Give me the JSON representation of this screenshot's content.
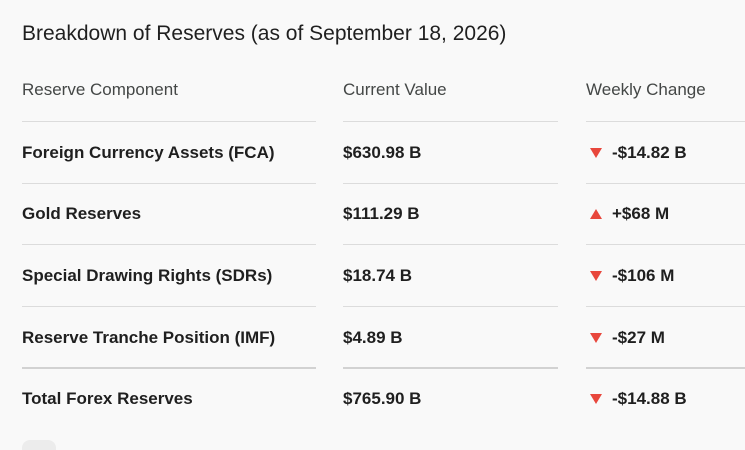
{
  "title": "Breakdown of Reserves (as of September 18, 2026)",
  "headers": {
    "component": "Reserve Component",
    "value": "Current Value",
    "change": "Weekly Change"
  },
  "colors": {
    "change_arrow": "#e8473c"
  },
  "rows": [
    {
      "component": "Foreign Currency Assets (FCA)",
      "value": "$630.98 B",
      "change": "-$14.82 B",
      "direction": "down",
      "arrow_icon": "triangle-down-icon"
    },
    {
      "component": "Gold Reserves",
      "value": "$111.29 B",
      "change": "+$68 M",
      "direction": "up",
      "arrow_icon": "triangle-up-icon"
    },
    {
      "component": "Special Drawing Rights (SDRs)",
      "value": "$18.74 B",
      "change": "-$106 M",
      "direction": "down",
      "arrow_icon": "triangle-down-icon"
    },
    {
      "component": "Reserve Tranche Position (IMF)",
      "value": "$4.89 B",
      "change": "-$27 M",
      "direction": "down",
      "arrow_icon": "triangle-down-icon"
    },
    {
      "component": "Total Forex Reserves",
      "value": "$765.90 B",
      "change": "-$14.88 B",
      "direction": "down",
      "arrow_icon": "triangle-down-icon"
    }
  ]
}
